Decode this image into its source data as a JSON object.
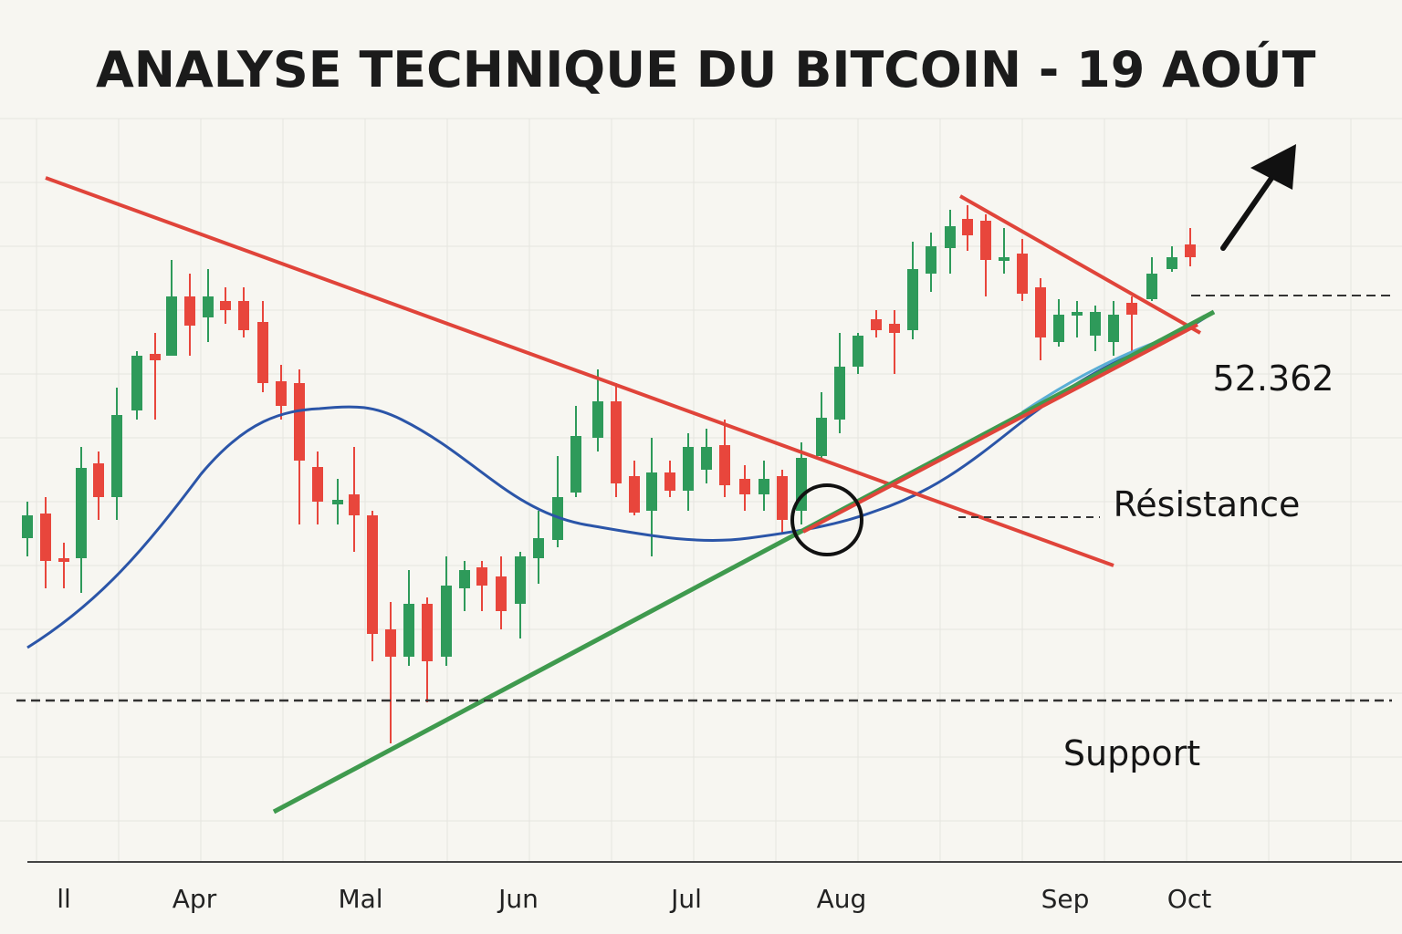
{
  "chart_data": {
    "type": "candlestick",
    "title": "ANALYSE TECHNIQUE DU BITCOIN - 19 AOÚT",
    "categories": [
      "ll",
      "Apr",
      "Mal",
      "Jun",
      "Jul",
      "Aug",
      "Sep",
      "Oct"
    ],
    "annotations": [
      "52.362",
      "Résistance",
      "Support"
    ]
  }
}
